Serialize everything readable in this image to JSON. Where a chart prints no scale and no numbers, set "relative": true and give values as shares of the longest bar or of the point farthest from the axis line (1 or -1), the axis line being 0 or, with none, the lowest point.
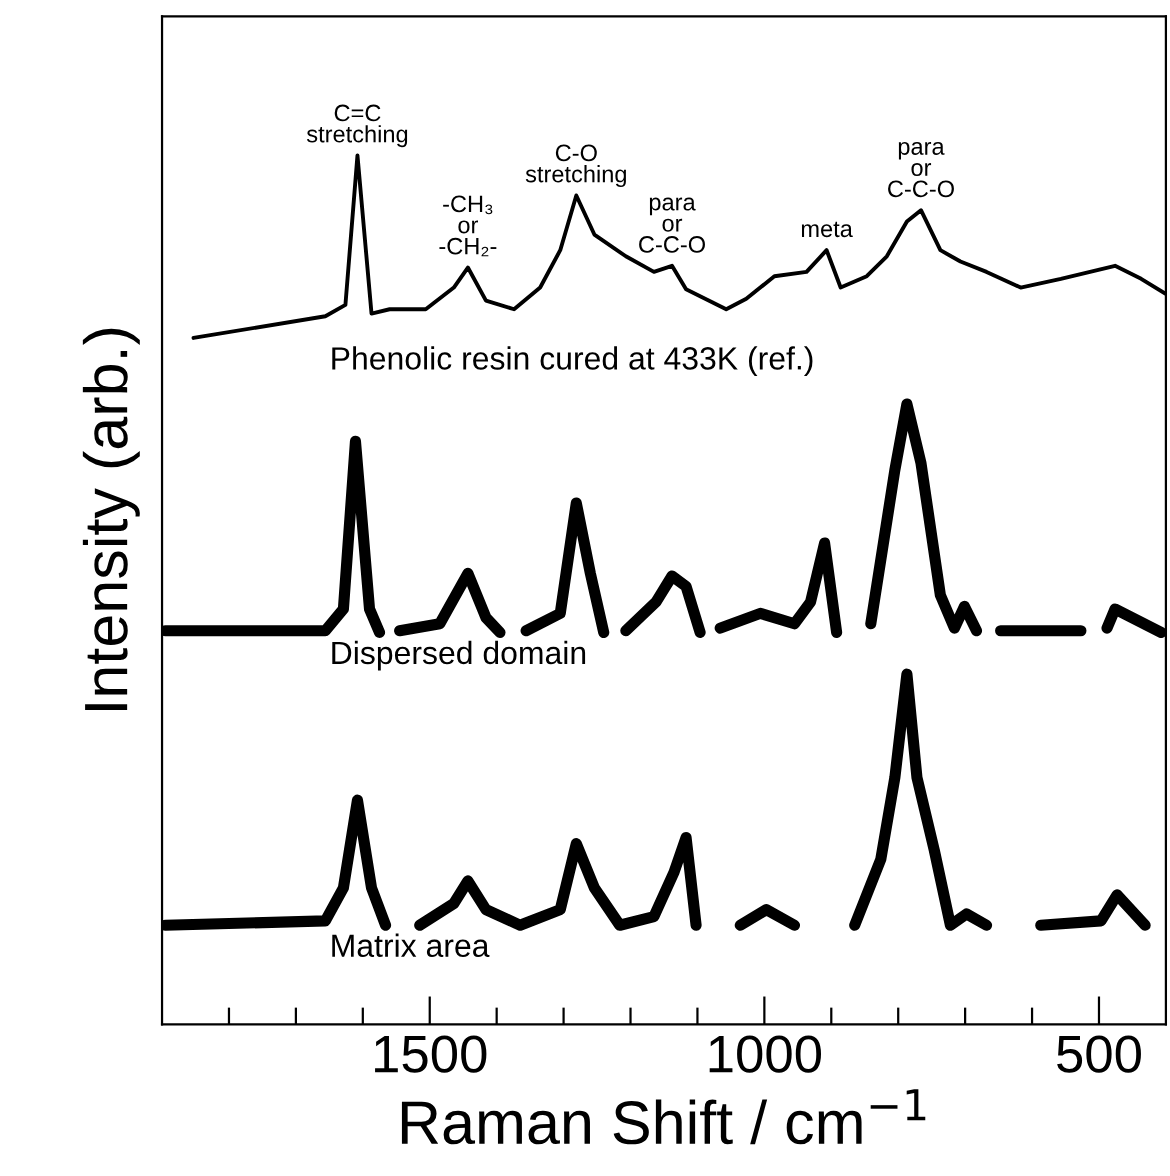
{
  "chart_data": {
    "type": "line",
    "relative": true,
    "xlabel": "Raman Shift / cm$^{−1}$",
    "ylabel": "Intensity (arb.)",
    "xlim": [
      1900,
      400
    ],
    "xticks": [
      {
        "value": 1800,
        "label": null
      },
      {
        "value": 1700,
        "label": null
      },
      {
        "value": 1600,
        "label": null
      },
      1500,
      {
        "value": 1400,
        "label": null
      },
      {
        "value": 1300,
        "label": null
      },
      {
        "value": 1200,
        "label": null
      },
      {
        "value": 1100,
        "label": null
      },
      1000,
      {
        "value": 900,
        "label": null
      },
      {
        "value": 800,
        "label": null
      },
      {
        "value": 700,
        "label": null
      },
      {
        "value": 600,
        "label": null
      },
      500
    ],
    "tick_labels": "x",
    "grid": false,
    "legend": false,
    "marker": "none",
    "line_style": "solid",
    "series": [
      {
        "name": "Phenolic resin cured at 433K (ref.)",
        "color": "#000000",
        "x": [
          1853,
          1656,
          1626,
          1608,
          1587,
          1560,
          1506,
          1464,
          1443,
          1416,
          1374,
          1335,
          1305,
          1281,
          1254,
          1207,
          1165,
          1138,
          1117,
          1057,
          1027,
          985,
          937,
          907,
          886,
          847,
          817,
          787,
          766,
          737,
          707,
          668,
          617,
          557,
          476,
          437,
          401
        ],
        "values": [
          0.79,
          0.815,
          0.828,
          1.0,
          0.818,
          0.823,
          0.823,
          0.848,
          0.871,
          0.833,
          0.823,
          0.848,
          0.891,
          0.954,
          0.909,
          0.884,
          0.866,
          0.873,
          0.846,
          0.823,
          0.835,
          0.861,
          0.866,
          0.891,
          0.848,
          0.861,
          0.884,
          0.924,
          0.937,
          0.891,
          0.878,
          0.866,
          0.848,
          0.858,
          0.873,
          0.858,
          0.841
        ]
      },
      {
        "name": "Dispersed domain",
        "color": "#000000",
        "x": [
          1895,
          1656,
          1629,
          1611,
          1590,
          1575,
          1560,
          1545,
          1485,
          1443,
          1416,
          1395,
          1375,
          1356,
          1305,
          1281,
          1260,
          1240,
          1222,
          1207,
          1162,
          1138,
          1117,
          1096,
          1080,
          1066,
          1006,
          955,
          931,
          910,
          892,
          865,
          841,
          805,
          787,
          766,
          737,
          716,
          701,
          683,
          665,
          647,
          527,
          507,
          488,
          476,
          407
        ],
        "values": [
          0.453,
          0.453,
          0.478,
          0.671,
          0.478,
          0.451,
          null,
          0.453,
          0.461,
          0.519,
          0.468,
          0.451,
          null,
          0.453,
          0.473,
          0.6,
          0.519,
          0.451,
          null,
          0.453,
          0.486,
          0.516,
          0.504,
          0.451,
          null,
          0.456,
          0.473,
          0.461,
          0.486,
          0.554,
          0.451,
          null,
          0.461,
          0.638,
          0.714,
          0.646,
          0.494,
          0.456,
          0.481,
          0.453,
          null,
          0.453,
          0.453,
          null,
          0.456,
          0.478,
          0.451
        ]
      },
      {
        "name": "Matrix area",
        "color": "#000000",
        "x": [
          1895,
          1656,
          1629,
          1608,
          1587,
          1566,
          1540,
          1515,
          1464,
          1443,
          1416,
          1365,
          1305,
          1281,
          1254,
          1216,
          1165,
          1135,
          1117,
          1102,
          1070,
          1036,
          997,
          955,
          910,
          865,
          826,
          805,
          787,
          772,
          746,
          722,
          698,
          668,
          628,
          587,
          497,
          473,
          431
        ],
        "values": [
          0.114,
          0.119,
          0.157,
          0.258,
          0.157,
          0.114,
          null,
          0.114,
          0.139,
          0.165,
          0.132,
          0.114,
          0.132,
          0.208,
          0.157,
          0.114,
          0.124,
          0.175,
          0.215,
          0.114,
          null,
          0.114,
          0.132,
          0.114,
          null,
          0.114,
          0.19,
          0.284,
          0.403,
          0.284,
          0.2,
          0.114,
          0.127,
          0.114,
          null,
          0.114,
          0.119,
          0.149,
          0.114
        ]
      }
    ],
    "annotations": [
      {
        "text": "C=C\nstretching",
        "x": 1608,
        "y": 1.0
      },
      {
        "text": "-CH₃\nor\n-CH₂-",
        "x": 1443,
        "y": 0.871
      },
      {
        "text": "C-O\nstretching",
        "x": 1281,
        "y": 0.954
      },
      {
        "text": "para\nor\nC-C-O",
        "x": 1138,
        "y": 0.873
      },
      {
        "text": "meta",
        "x": 907,
        "y": 0.891
      },
      {
        "text": "para\nor\nC-C-O",
        "x": 766,
        "y": 0.937
      }
    ]
  }
}
